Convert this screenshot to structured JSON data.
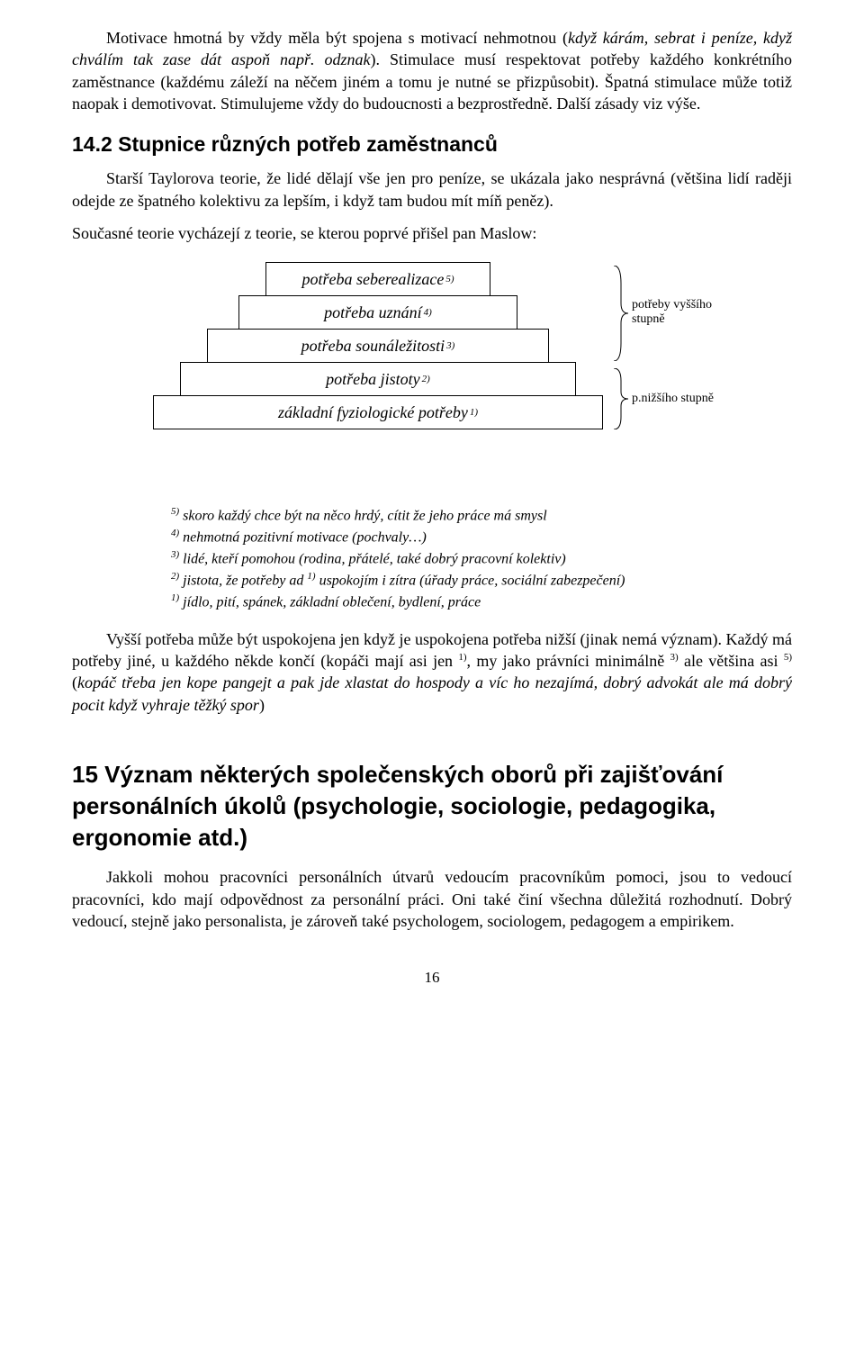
{
  "para1_a": "Motivace hmotná by vždy měla být spojena s motivací nehmotnou (",
  "para1_i": "když kárám, sebrat i peníze, když chválím tak zase dát aspoň např. odznak",
  "para1_b": "). Stimulace musí respektovat potřeby každého konkrétního zaměstnance (každému záleží na něčem jiném a tomu je nutné se přizpůsobit). Špatná stimulace může totiž naopak i demotivovat. Stimulujeme vždy do budoucnosti a bezprostředně. Další zásady viz výše.",
  "h2": "14.2 Stupnice různých potřeb zaměstnanců",
  "para2": "Starší Taylorova teorie, že lidé dělají vše jen pro peníze, se ukázala jako nesprávná (většina lidí raději odejde ze špatného kolektivu za lepším, i když tam budou mít míň peněz).",
  "para3": "Současné teorie vycházejí z teorie, se kterou poprvé přišel pan Maslow:",
  "pyramid": {
    "levels": [
      {
        "label": "potřeba seberealizace",
        "fn": "5)"
      },
      {
        "label": "potřeba uznání",
        "fn": "4)"
      },
      {
        "label": "potřeba sounáležitosti",
        "fn": "3)"
      },
      {
        "label": "potřeba jistoty",
        "fn": "2)"
      },
      {
        "label": "základní fyziologické potřeby",
        "fn": "1)"
      }
    ],
    "brace_top_label": "potřeby vyššího\nstupně",
    "brace_bottom_label": "p.nižšího stupně"
  },
  "footnotes": [
    {
      "num": "5)",
      "text": " skoro každý chce být na něco hrdý, cítit že jeho práce má smysl"
    },
    {
      "num": "4)",
      "text": " nehmotná pozitivní motivace (pochvaly…)"
    },
    {
      "num": "3)",
      "text": " lidé, kteří pomohou (rodina, přátelé, také dobrý pracovní kolektiv)"
    },
    {
      "num": "2)",
      "text": " jistota, že potřeby ad ",
      "inner_num": "1)",
      "text2": " uspokojím i zítra (úřady práce, sociální zabezpečení)"
    },
    {
      "num": "1)",
      "text": " jídlo, pití, spánek, základní oblečení, bydlení, práce"
    }
  ],
  "para4_a": "Vyšší potřeba může být uspokojena jen když je uspokojena potřeba nižší (jinak nemá význam). Každý má potřeby jiné, u každého někde končí (kopáči mají asi jen ",
  "para4_s1": "1)",
  "para4_b": ", my jako právníci minimálně ",
  "para4_s3": "3)",
  "para4_c": " ale většina asi ",
  "para4_s5": "5)",
  "para4_d": " (",
  "para4_i": "kopáč třeba jen kope pangejt a pak jde xlastat do hospody a víc ho nezajímá, dobrý advokát ale má dobrý pocit když vyhraje těžký spor",
  "para4_e": ")",
  "h1_num": "15",
  "h1_rest": " Význam některých společenských oborů při zajišťování personálních úkolů (psychologie, sociologie, pedagogika, ergonomie atd.)",
  "para5": "Jakkoli mohou pracovníci personálních útvarů vedoucím pracovníkům pomoci, jsou to vedoucí pracovníci, kdo mají odpovědnost za personální práci. Oni také činí všechna důležitá rozhodnutí. Dobrý vedoucí, stejně jako personalista, je zároveň také psychologem, sociologem, pedagogem a empirikem.",
  "pagenum": "16"
}
